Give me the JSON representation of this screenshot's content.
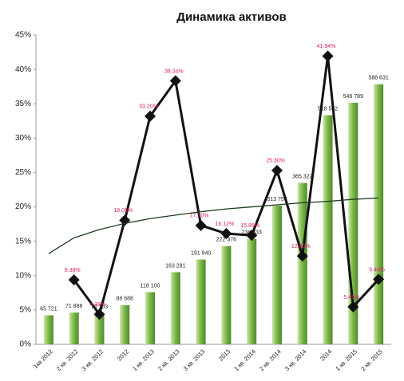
{
  "chart_data": {
    "type": "bar-line",
    "title": "Динамика активов",
    "categories": [
      "1кв 2012",
      "2 кв. 2012",
      "3 кв. 2012",
      "2012",
      "1 кв. 2013",
      "2 кв. 2013",
      "3 кв. 2013",
      "2013",
      "1 кв. 2014",
      "2 кв. 2014",
      "3 кв. 2014",
      "2014",
      "1 кв. 2015",
      "2 кв. 2015"
    ],
    "ylim": [
      0,
      45
    ],
    "yticks": [
      {
        "value": 0,
        "label": "0%"
      },
      {
        "value": 5,
        "label": "5%"
      },
      {
        "value": 10,
        "label": "10%"
      },
      {
        "value": 15,
        "label": "15%"
      },
      {
        "value": 20,
        "label": "20%"
      },
      {
        "value": 25,
        "label": "25%"
      },
      {
        "value": 30,
        "label": "30%"
      },
      {
        "value": 35,
        "label": "35%"
      },
      {
        "value": 40,
        "label": "40%"
      },
      {
        "value": 45,
        "label": "45%"
      }
    ],
    "y2lim": [
      0,
      700000
    ],
    "series": [
      {
        "kind": "bar",
        "axis": "y2",
        "color": "#7ab648",
        "values": [
          65721,
          71888,
          70153,
          88688,
          118100,
          163281,
          191940,
          222376,
          238333,
          313757,
          365322,
          518582,
          546789,
          588631
        ],
        "value_labels": [
          "65 721",
          "71 888",
          "70 153",
          "88 688",
          "118 100",
          "163 281",
          "191 940",
          "222 376",
          "238 333",
          "313 757",
          "365 322",
          "518 582",
          "546 789",
          "588 631"
        ],
        "label_color": "#222222"
      },
      {
        "kind": "line",
        "color": "#111111",
        "values": [
          null,
          9.38,
          4.38,
          18.05,
          33.2,
          38.34,
          17.3,
          16.12,
          15.86,
          25.3,
          12.85,
          41.94,
          5.45,
          9.46
        ],
        "value_labels": [
          null,
          "9.38%",
          "4.38%",
          "18.05%",
          "33.20%",
          "38.34%",
          "17.30%",
          "16.12%",
          "15.86%",
          "25.30%",
          "12.85%",
          "41.94%",
          "5.45%",
          "9.46%"
        ],
        "label_color": "#e0206a"
      },
      {
        "kind": "trend",
        "color": "#1e3a1e",
        "values": [
          13.2,
          15.5,
          16.7,
          17.6,
          18.3,
          18.8,
          19.3,
          19.7,
          20.0,
          20.3,
          20.6,
          20.8,
          21.1,
          21.3
        ]
      }
    ]
  }
}
